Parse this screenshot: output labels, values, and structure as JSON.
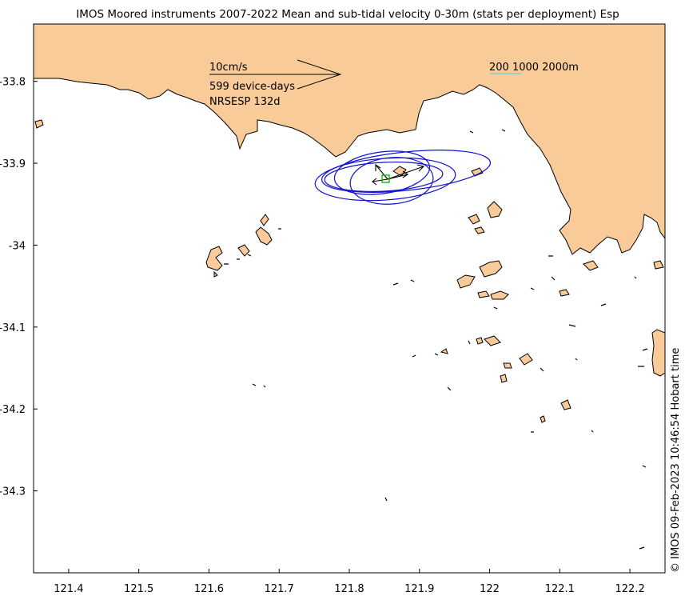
{
  "title": "IMOS Moored instruments 2007-2022 Mean and sub-tidal velocity 0-30m (stats per deployment) Esp",
  "credit": "© IMOS 09-Feb-2023 10:46:54 Hobart time",
  "map": {
    "lon_range": [
      121.35,
      122.25
    ],
    "lat_range": [
      -34.4,
      -33.73
    ],
    "x_ticks": [
      {
        "value": 121.4,
        "label": "121.4"
      },
      {
        "value": 121.5,
        "label": "121.5"
      },
      {
        "value": 121.6,
        "label": "121.6"
      },
      {
        "value": 121.7,
        "label": "121.7"
      },
      {
        "value": 121.8,
        "label": "121.8"
      },
      {
        "value": 121.9,
        "label": "121.9"
      },
      {
        "value": 122.0,
        "label": "122"
      },
      {
        "value": 122.1,
        "label": "122.1"
      },
      {
        "value": 122.2,
        "label": "122.2"
      }
    ],
    "y_ticks": [
      {
        "value": -33.8,
        "label": "-33.8"
      },
      {
        "value": -33.9,
        "label": "-33.9"
      },
      {
        "value": -34.0,
        "label": "-34"
      },
      {
        "value": -34.1,
        "label": "-34.1"
      },
      {
        "value": -34.2,
        "label": "-34.2"
      },
      {
        "value": -34.3,
        "label": "-34.3"
      }
    ],
    "legend": {
      "scale_label": "10cm/s",
      "device_days": "599 device-days",
      "site_label": "NRSESP 132d",
      "isobaths_label": "200 1000 2000m"
    },
    "site": {
      "name": "NRSESP",
      "lon": 121.855,
      "lat": -33.932
    },
    "colors": {
      "land": "#f9cb99",
      "ellipse": "#1010d0",
      "site": "#00b000",
      "isobath": "#7fd0d0"
    }
  }
}
